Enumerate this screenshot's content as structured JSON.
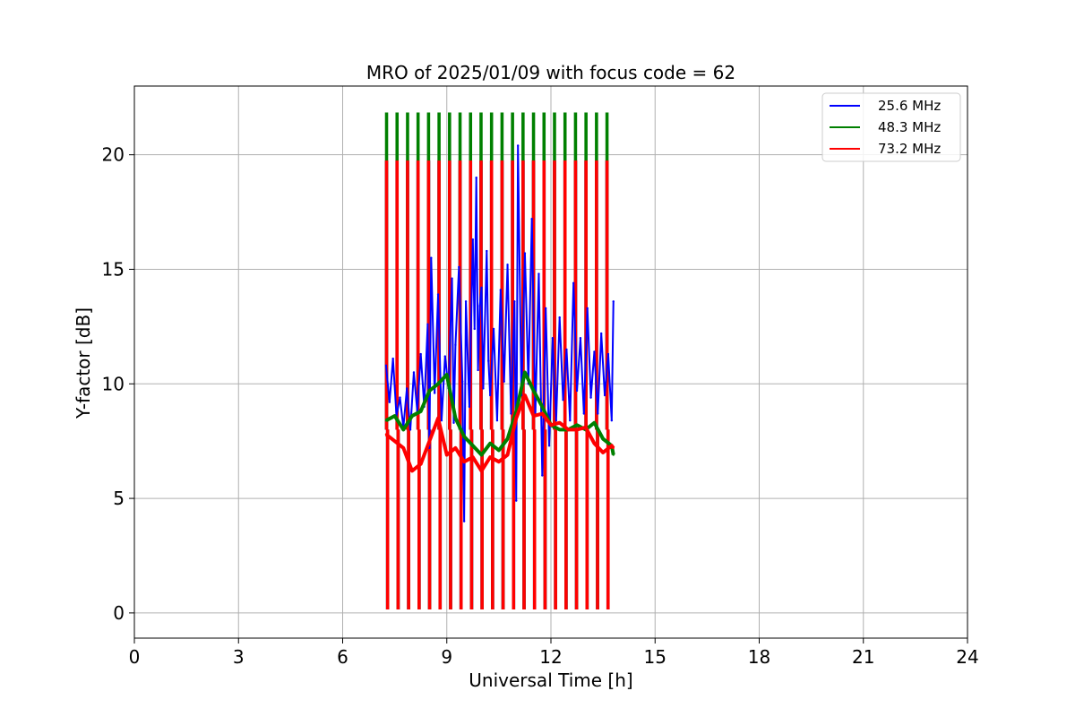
{
  "chart_data": {
    "type": "line",
    "title": "MRO of 2025/01/09 with focus code = 62",
    "xlabel": "Universal Time [h]",
    "ylabel": "Y-factor [dB]",
    "xlim": [
      0,
      24
    ],
    "ylim": [
      -1.1,
      23
    ],
    "x_ticks": [
      "0",
      "3",
      "6",
      "9",
      "12",
      "15",
      "18",
      "21",
      "24"
    ],
    "y_ticks": [
      "0",
      "5",
      "10",
      "15",
      "20"
    ],
    "grid": true,
    "legend_position": "top-right",
    "calibration_pulses": {
      "start_h": 7.25,
      "end_h": 13.6,
      "count": 22,
      "peak_db": {
        "25.6 MHz": 19.7,
        "48.3 MHz": 21.8,
        "73.2 MHz": 19.7
      },
      "floor_db": 0.2
    },
    "series": [
      {
        "name": "25.6 MHz",
        "color": "#0000ff",
        "x": [
          7.25,
          7.35,
          7.45,
          7.55,
          7.65,
          7.75,
          7.85,
          7.95,
          8.05,
          8.15,
          8.25,
          8.35,
          8.45,
          8.5,
          8.55,
          8.65,
          8.75,
          8.85,
          8.95,
          9.05,
          9.15,
          9.2,
          9.25,
          9.35,
          9.45,
          9.5,
          9.55,
          9.65,
          9.75,
          9.8,
          9.85,
          9.9,
          9.95,
          10.0,
          10.05,
          10.15,
          10.2,
          10.25,
          10.35,
          10.45,
          10.55,
          10.65,
          10.75,
          10.85,
          10.95,
          11.0,
          11.05,
          11.15,
          11.25,
          11.35,
          11.45,
          11.55,
          11.65,
          11.75,
          11.85,
          11.95,
          12.05,
          12.15,
          12.25,
          12.35,
          12.45,
          12.55,
          12.65,
          12.75,
          12.85,
          12.95,
          13.05,
          13.15,
          13.25,
          13.35,
          13.45,
          13.55,
          13.65,
          13.75,
          13.8
        ],
        "values": [
          10.8,
          9.2,
          11.1,
          8.6,
          9.4,
          8.1,
          9.8,
          8.0,
          10.5,
          8.8,
          11.3,
          9.0,
          12.6,
          7.2,
          15.5,
          9.6,
          13.9,
          8.4,
          11.2,
          9.8,
          14.6,
          8.3,
          11.7,
          15.1,
          10.1,
          4.0,
          13.6,
          9.0,
          16.3,
          12.4,
          19.0,
          10.6,
          13.4,
          14.2,
          9.8,
          15.8,
          11.0,
          9.5,
          12.4,
          8.4,
          14.1,
          10.1,
          15.2,
          8.7,
          13.6,
          4.9,
          20.4,
          9.5,
          15.7,
          10.0,
          17.2,
          8.6,
          14.8,
          6.0,
          13.3,
          7.3,
          12.0,
          8.4,
          12.9,
          9.3,
          11.5,
          8.4,
          14.4,
          9.7,
          12.0,
          8.7,
          13.3,
          9.4,
          11.4,
          8.7,
          12.2,
          9.5,
          11.3,
          8.4,
          13.6
        ]
      },
      {
        "name": "48.3 MHz",
        "color": "#008000",
        "x": [
          7.25,
          7.5,
          7.75,
          8.0,
          8.25,
          8.5,
          8.75,
          9.0,
          9.25,
          9.5,
          9.75,
          10.0,
          10.25,
          10.5,
          10.75,
          11.0,
          11.25,
          11.5,
          11.75,
          12.0,
          12.25,
          12.5,
          12.75,
          13.0,
          13.25,
          13.5,
          13.75,
          13.8
        ],
        "values": [
          8.4,
          8.6,
          8.0,
          8.6,
          8.8,
          9.7,
          10.0,
          10.4,
          8.5,
          7.7,
          7.3,
          6.9,
          7.4,
          7.1,
          7.6,
          8.8,
          10.5,
          9.7,
          9.0,
          8.2,
          8.0,
          8.0,
          8.2,
          8.0,
          8.3,
          7.6,
          7.3,
          6.9
        ]
      },
      {
        "name": "73.2 MHz",
        "color": "#ff0000",
        "x": [
          7.25,
          7.5,
          7.75,
          8.0,
          8.25,
          8.5,
          8.75,
          9.0,
          9.25,
          9.5,
          9.75,
          10.0,
          10.25,
          10.5,
          10.75,
          11.0,
          11.25,
          11.5,
          11.75,
          12.0,
          12.25,
          12.5,
          12.75,
          13.0,
          13.25,
          13.5,
          13.75,
          13.8
        ],
        "values": [
          7.8,
          7.5,
          7.2,
          6.2,
          6.5,
          7.5,
          8.5,
          6.9,
          7.2,
          6.6,
          6.8,
          6.2,
          6.8,
          6.6,
          6.9,
          8.5,
          9.5,
          8.6,
          8.7,
          8.2,
          8.3,
          8.0,
          8.0,
          8.1,
          7.4,
          7.0,
          7.3,
          7.2
        ]
      }
    ]
  }
}
